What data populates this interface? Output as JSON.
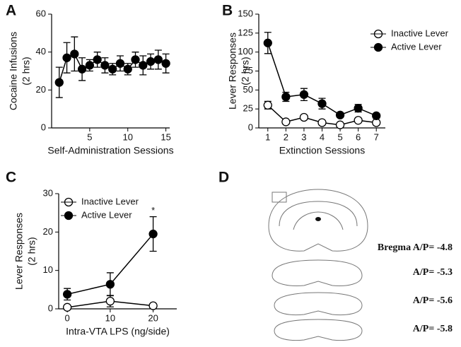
{
  "chart_data": [
    {
      "type": "line",
      "panel": "A",
      "ylabel": [
        "Cocaine Infusions",
        "(2 hrs)"
      ],
      "xlabel": "Self-Administration Sessions",
      "x": [
        1,
        2,
        3,
        4,
        5,
        6,
        7,
        8,
        9,
        10,
        11,
        12,
        13,
        14,
        15
      ],
      "values": [
        24,
        37,
        39,
        31,
        33,
        36,
        33,
        31,
        34,
        31,
        36,
        33,
        35,
        36,
        34
      ],
      "errors": [
        8,
        8,
        9,
        6,
        3,
        4,
        4,
        3,
        4,
        3,
        4,
        5,
        4,
        5,
        5
      ],
      "color": "#000000",
      "xlim": [
        0,
        15.5
      ],
      "xticks": [
        5,
        10,
        15
      ],
      "ylim": [
        0,
        60
      ],
      "yticks": [
        0,
        20,
        40,
        60
      ]
    },
    {
      "type": "line",
      "panel": "B",
      "ylabel": [
        "Lever Responses",
        "(2 hrs)"
      ],
      "xlabel": "Extinction Sessions",
      "categories": [
        "1",
        "2",
        "3",
        "4",
        "5",
        "6",
        "7"
      ],
      "series": [
        {
          "name": "Inactive Lever",
          "color": "#ffffff",
          "values": [
            30,
            8,
            14,
            7,
            4,
            10,
            7
          ],
          "errors": [
            5,
            2,
            2,
            2,
            1,
            2,
            2
          ]
        },
        {
          "name": "Active Lever",
          "color": "#000000",
          "values": [
            112,
            41,
            44,
            32,
            17,
            26,
            16
          ],
          "errors": [
            14,
            6,
            8,
            7,
            3,
            5,
            3
          ]
        }
      ],
      "ylim": [
        0,
        150
      ],
      "yticks": [
        0,
        25,
        50,
        75,
        100,
        125,
        150
      ],
      "legend": "upper right"
    },
    {
      "type": "line",
      "panel": "C",
      "ylabel": [
        "Lever Responses",
        "(2 hrs)"
      ],
      "xlabel": "Intra-VTA LPS (ng/side)",
      "x": [
        0,
        10,
        20
      ],
      "series": [
        {
          "name": "Inactive Lever",
          "color": "#ffffff",
          "values": [
            0.4,
            2,
            0.8
          ],
          "errors": [
            0.5,
            1.5,
            0.3
          ]
        },
        {
          "name": "Active Lever",
          "color": "#000000",
          "values": [
            3.8,
            6.4,
            19.5
          ],
          "errors": [
            1.5,
            3,
            4.5
          ]
        }
      ],
      "annotation": "*",
      "xlim": [
        -2,
        25.5
      ],
      "xticks": [
        0,
        10,
        20
      ],
      "ylim": [
        0,
        30
      ],
      "yticks": [
        0,
        10,
        20,
        30
      ],
      "legend": "upper left"
    }
  ],
  "figure_d": {
    "panel": "D",
    "labels": [
      "Bregma A/P= -4.8",
      "A/P= -5.3",
      "A/P= -5.6",
      "A/P= -5.8"
    ]
  }
}
